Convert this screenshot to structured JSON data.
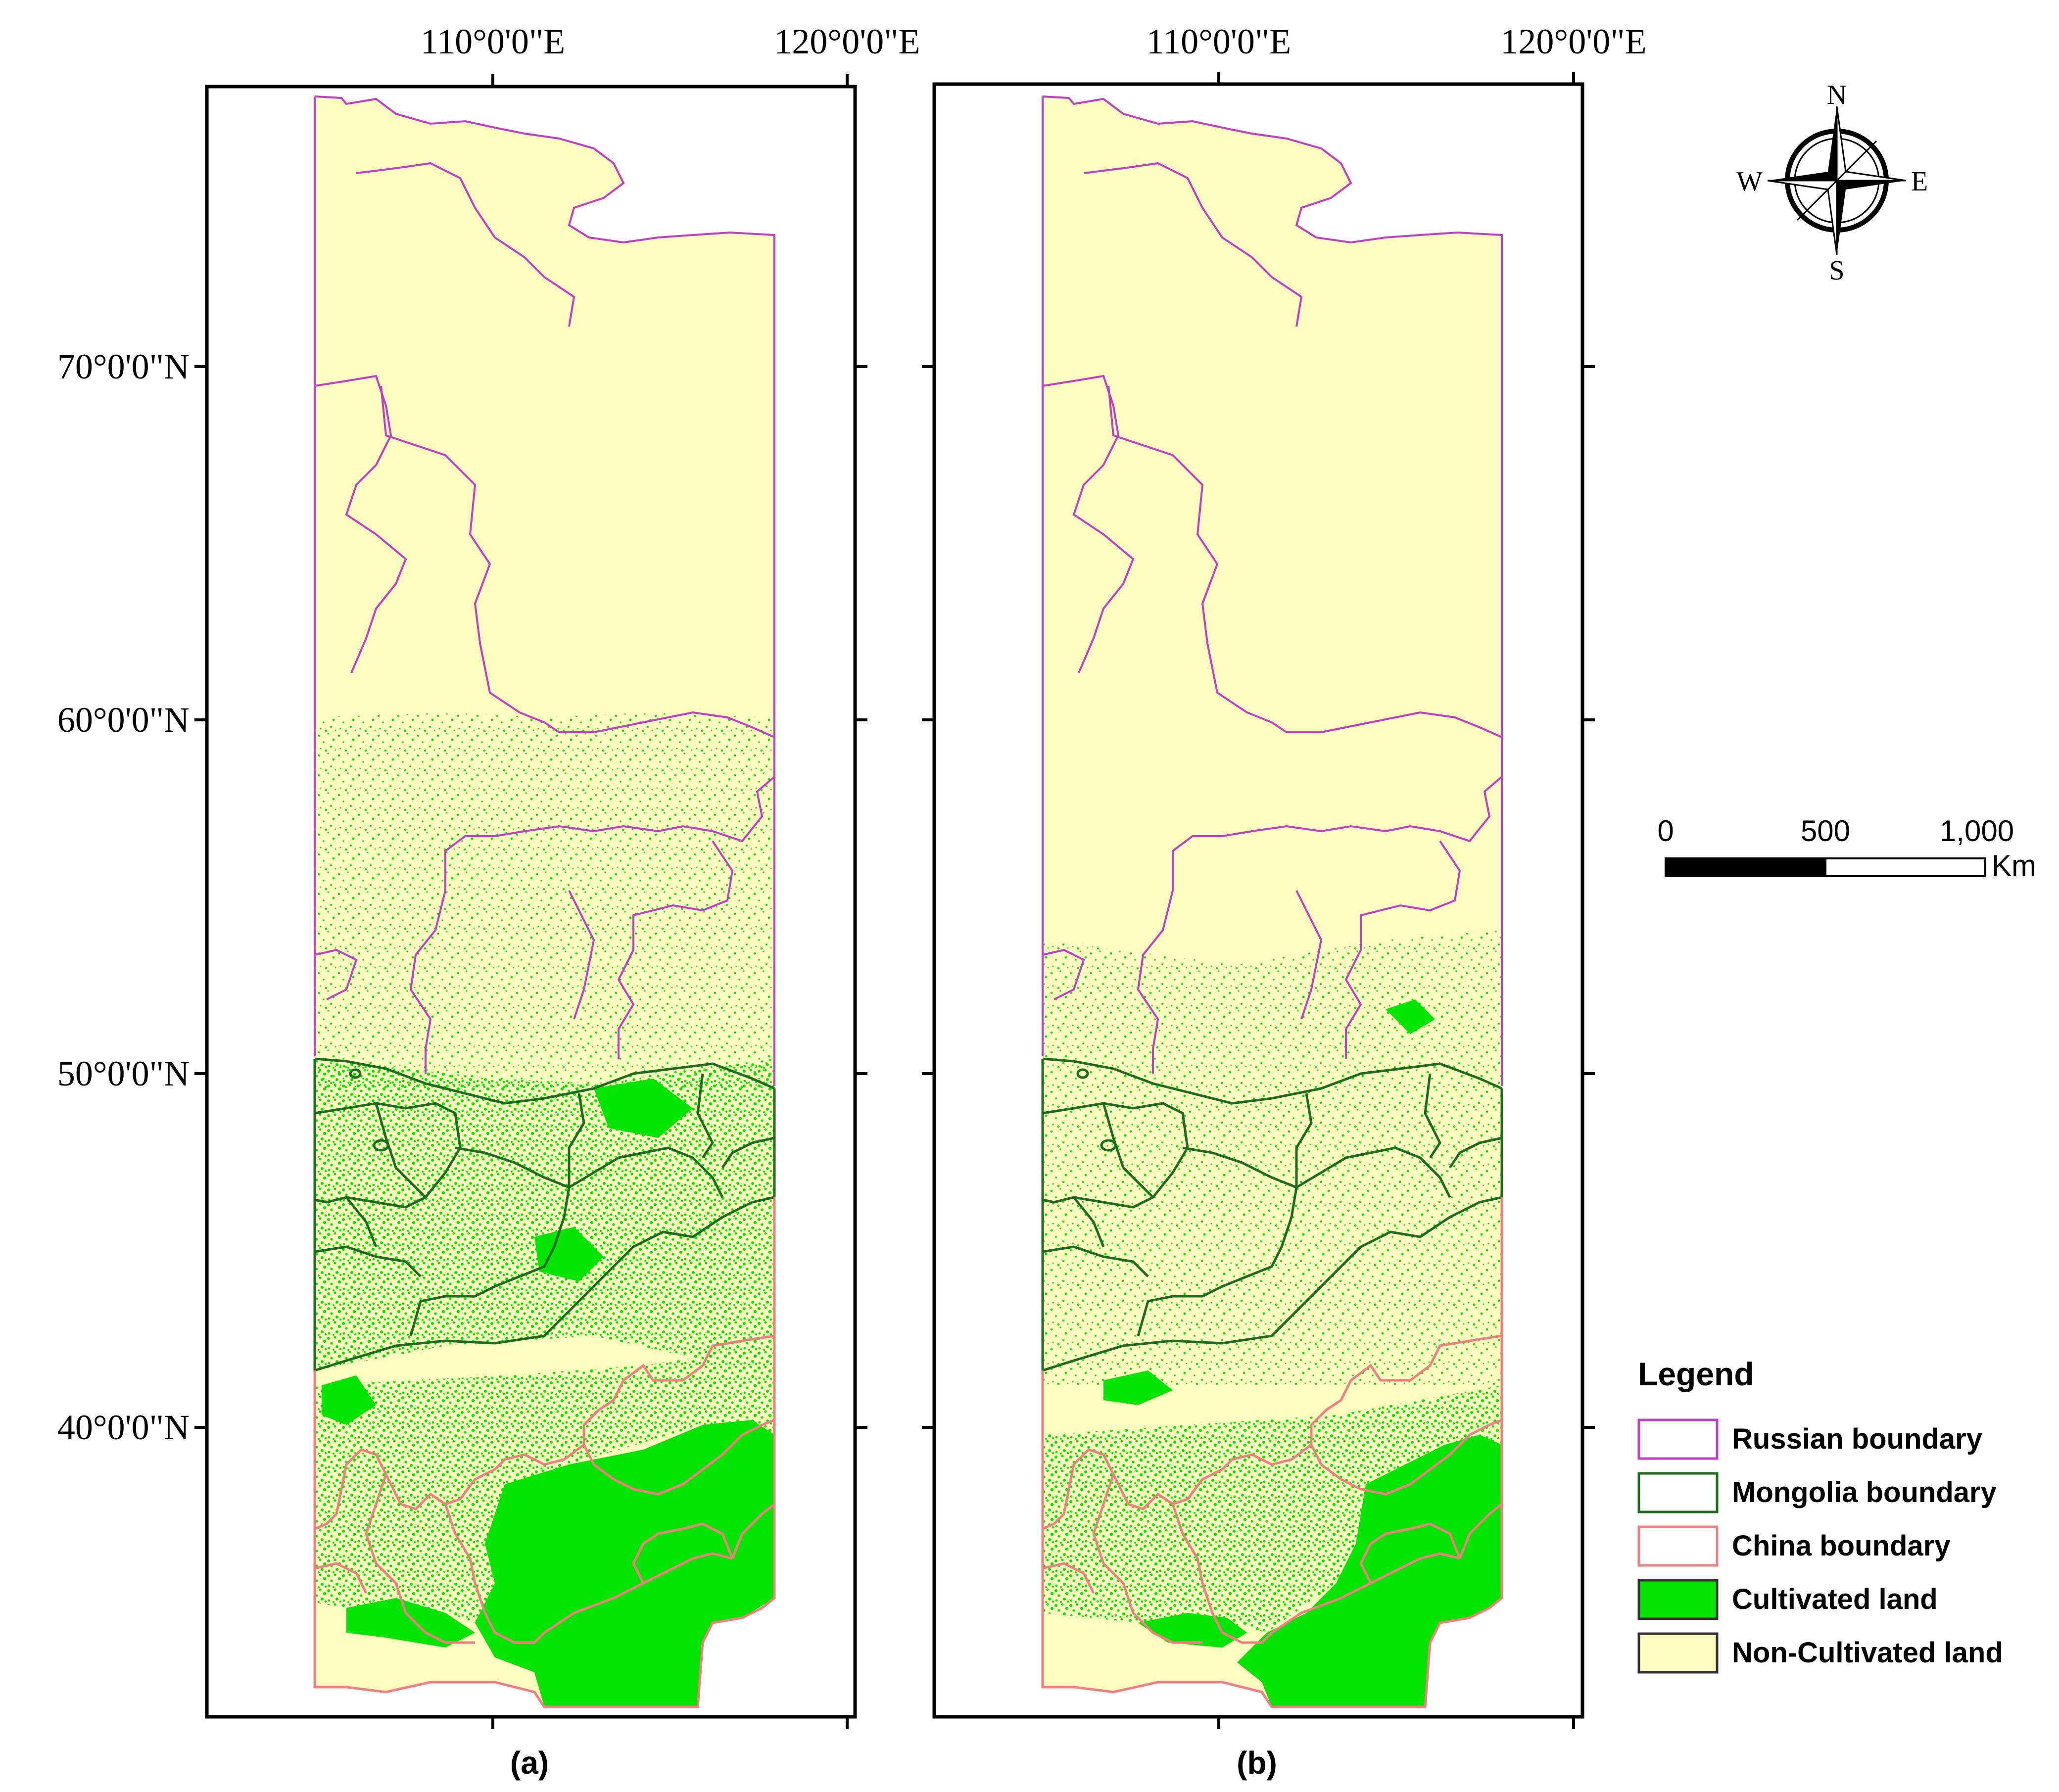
{
  "panels": [
    {
      "caption": "(a)",
      "lon_labels": [
        "110°0'0\"E",
        "120°0'0\"E"
      ],
      "lat_labels": [
        "70°0'0\"N",
        "60°0'0\"N",
        "50°0'0\"N",
        "40°0'0\"N"
      ]
    },
    {
      "caption": "(b)",
      "lon_labels": [
        "110°0'0\"E",
        "120°0'0\"E"
      ]
    }
  ],
  "north_arrow": {
    "n": "N",
    "s": "S",
    "e": "E",
    "w": "W",
    "icon": "compass-rose-icon"
  },
  "scale_bar": {
    "ticks": [
      "0",
      "500",
      "1,000"
    ],
    "unit": "Km"
  },
  "legend": {
    "title": "Legend",
    "items": [
      {
        "label": "Russian boundary",
        "swatch_fill": "#ffffff",
        "swatch_border": "#c040c0"
      },
      {
        "label": "Mongolia boundary",
        "swatch_fill": "#ffffff",
        "swatch_border": "#1f6b1f"
      },
      {
        "label": "China boundary",
        "swatch_fill": "#ffffff",
        "swatch_border": "#f08080"
      },
      {
        "label": "Cultivated land",
        "swatch_fill": "#00e400",
        "swatch_border": "#333333"
      },
      {
        "label": "Non-Cultivated land",
        "swatch_fill": "#fefcbf",
        "swatch_border": "#333333"
      }
    ]
  },
  "colors": {
    "non_cultivated": "#fefcbf",
    "cultivated": "#00e400",
    "russia_line": "#c040c0",
    "mongolia_line": "#1f6b1f",
    "china_line": "#f08080"
  }
}
